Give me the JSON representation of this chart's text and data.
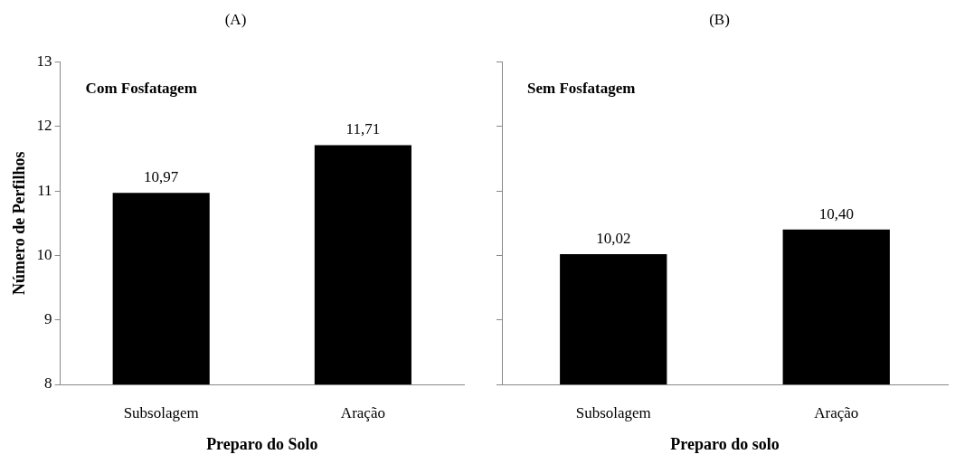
{
  "chart_data": [
    {
      "type": "bar",
      "title": "(A)",
      "subtitle": "Com Fosfatagem",
      "xlabel": "Preparo do Solo",
      "ylabel": "Número de Perfilhos",
      "categories": [
        "Subsolagem",
        "Aração"
      ],
      "values": [
        10.97,
        11.71
      ],
      "value_labels": [
        "10,97",
        "11,71"
      ],
      "color": "#000000",
      "ylim": [
        8,
        13
      ],
      "yticks": [
        8,
        9,
        10,
        11,
        12,
        13
      ],
      "grid": false,
      "legend": false
    },
    {
      "type": "bar",
      "title": "(B)",
      "subtitle": "Sem Fosfatagem",
      "xlabel": "Preparo do solo",
      "categories": [
        "Subsolagem",
        "Aração"
      ],
      "values": [
        10.02,
        10.4
      ],
      "value_labels": [
        "10,02",
        "10,40"
      ],
      "color": "#000000",
      "ylim": [
        8,
        13
      ],
      "yticks": [
        {
          "value": 8,
          "label": null
        },
        {
          "value": 9,
          "label": null
        },
        {
          "value": 10,
          "label": null
        },
        {
          "value": 11,
          "label": null
        },
        {
          "value": 12,
          "label": null
        },
        {
          "value": 13,
          "label": null
        }
      ],
      "tick_labels": "x",
      "grid": false,
      "legend": false
    }
  ]
}
